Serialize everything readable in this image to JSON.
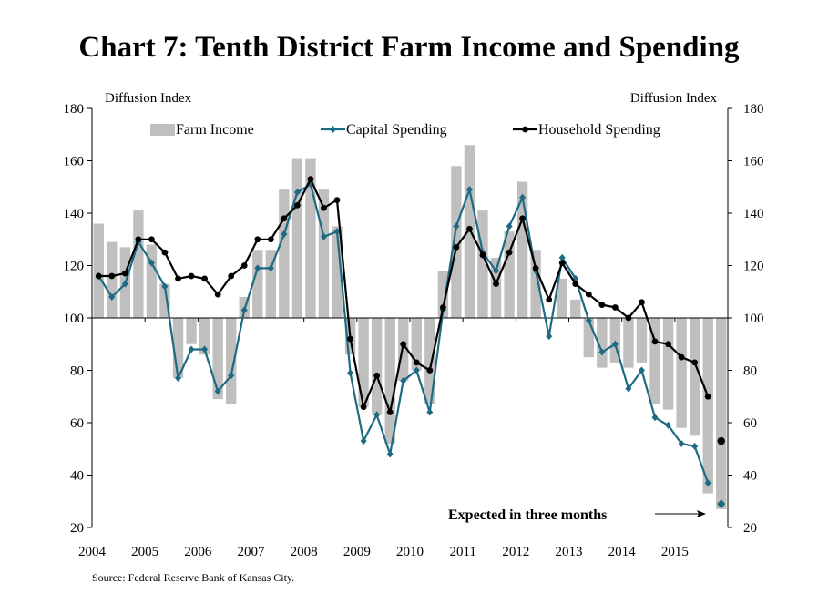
{
  "chart_data": {
    "type": "bar",
    "title": "Chart 7: Tenth District Farm Income and Spending",
    "ylabel_left": "Diffusion Index",
    "ylabel_right": "Diffusion Index",
    "ylim": [
      20,
      180
    ],
    "yticks": [
      20,
      40,
      60,
      80,
      100,
      120,
      140,
      160,
      180
    ],
    "baseline": 100,
    "x_tick_labels": [
      "2004",
      "2005",
      "2006",
      "2007",
      "2008",
      "2009",
      "2010",
      "2011",
      "2012",
      "2013",
      "2014",
      "2015"
    ],
    "x_start": 2004,
    "x_end": 2016,
    "legend_position": "top",
    "grid": false,
    "source": "Source: Federal Reserve Bank of Kansas City.",
    "annotation": "Expected in three months",
    "colors": {
      "farm_income": "#bfbfbf",
      "capital_spending": "#1c6b83",
      "household_spending": "#000000"
    },
    "series": [
      {
        "name": "Farm Income",
        "kind": "bar",
        "values": [
          136,
          129,
          127,
          141,
          128,
          113,
          77,
          90,
          86,
          69,
          67,
          108,
          126,
          126,
          149,
          161,
          161,
          149,
          135,
          86,
          66,
          63,
          52,
          76,
          80,
          67,
          118,
          158,
          166,
          141,
          123,
          133,
          152,
          126,
          100,
          115,
          107,
          85,
          81,
          83,
          81,
          83,
          67,
          65,
          58,
          55,
          33
        ]
      },
      {
        "name": "Capital Spending",
        "kind": "line",
        "values": [
          116,
          108,
          113,
          129,
          121,
          112,
          77,
          88,
          88,
          72,
          78,
          103,
          119,
          119,
          132,
          148,
          151,
          131,
          133,
          79,
          53,
          63,
          48,
          76,
          80,
          64,
          103,
          135,
          149,
          125,
          118,
          135,
          146,
          118,
          93,
          123,
          115,
          99,
          87,
          90,
          73,
          80,
          62,
          59,
          52,
          51,
          37
        ]
      },
      {
        "name": "Household Spending",
        "kind": "line",
        "values": [
          116,
          116,
          117,
          130,
          130,
          125,
          115,
          116,
          115,
          109,
          116,
          120,
          130,
          130,
          138,
          143,
          153,
          142,
          145,
          92,
          66,
          78,
          64,
          90,
          83,
          80,
          104,
          127,
          134,
          124,
          113,
          125,
          138,
          119,
          107,
          121,
          113,
          109,
          105,
          104,
          100,
          106,
          91,
          90,
          85,
          83,
          70
        ]
      }
    ],
    "expected": [
      {
        "name": "Farm Income",
        "value": 27
      },
      {
        "name": "Capital Spending",
        "value": 29
      },
      {
        "name": "Household Spending",
        "value": 53
      }
    ]
  }
}
